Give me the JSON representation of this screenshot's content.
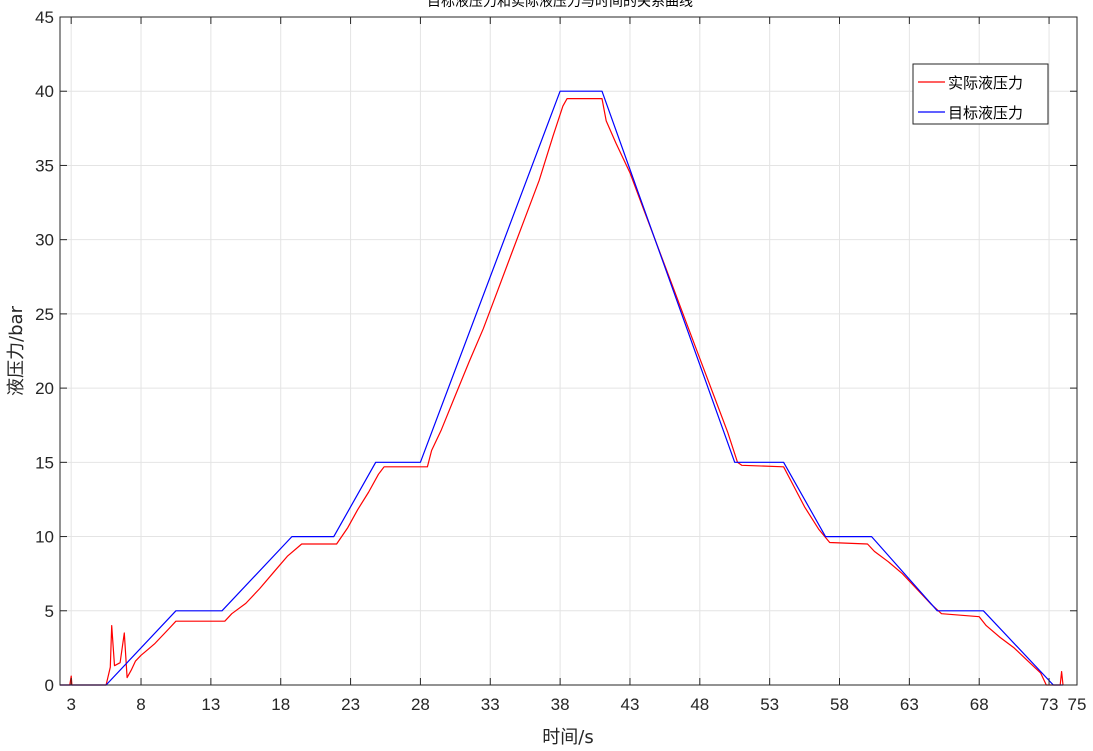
{
  "chart_data": {
    "type": "line",
    "title": "目标液压力和实际液压力与时间的关系曲线",
    "xlabel": "时间/s",
    "ylabel": "液压力/bar",
    "xlim": [
      2.2,
      75
    ],
    "ylim": [
      0,
      45
    ],
    "grid": true,
    "legend_position": "top-right",
    "xticks": [
      3,
      8,
      13,
      18,
      23,
      28,
      33,
      38,
      43,
      48,
      53,
      58,
      63,
      68,
      73,
      75
    ],
    "yticks": [
      0,
      5,
      10,
      15,
      20,
      25,
      30,
      35,
      40,
      45
    ],
    "series": [
      {
        "name": "实际液压力",
        "color": "#ff0000",
        "points": [
          [
            2.2,
            0
          ],
          [
            2.9,
            0
          ],
          [
            3.0,
            0.6
          ],
          [
            3.05,
            0
          ],
          [
            5.5,
            0
          ],
          [
            5.8,
            1.2
          ],
          [
            5.9,
            4.0
          ],
          [
            6.1,
            1.3
          ],
          [
            6.5,
            1.5
          ],
          [
            6.8,
            3.5
          ],
          [
            7.0,
            0.5
          ],
          [
            7.3,
            1.0
          ],
          [
            7.6,
            1.6
          ],
          [
            8.0,
            2.0
          ],
          [
            8.5,
            2.4
          ],
          [
            9.0,
            2.8
          ],
          [
            9.5,
            3.3
          ],
          [
            10.0,
            3.8
          ],
          [
            10.5,
            4.3
          ],
          [
            14.0,
            4.3
          ],
          [
            14.5,
            4.8
          ],
          [
            15.5,
            5.5
          ],
          [
            16.5,
            6.5
          ],
          [
            17.5,
            7.6
          ],
          [
            18.5,
            8.7
          ],
          [
            19.5,
            9.5
          ],
          [
            22.0,
            9.5
          ],
          [
            22.8,
            10.6
          ],
          [
            23.5,
            11.8
          ],
          [
            24.3,
            13.0
          ],
          [
            25.0,
            14.2
          ],
          [
            25.4,
            14.7
          ],
          [
            28.5,
            14.7
          ],
          [
            28.8,
            15.8
          ],
          [
            29.5,
            17.2
          ],
          [
            30.5,
            19.5
          ],
          [
            31.5,
            21.8
          ],
          [
            32.5,
            24.0
          ],
          [
            33.5,
            26.5
          ],
          [
            34.5,
            29.0
          ],
          [
            35.5,
            31.5
          ],
          [
            36.5,
            34.0
          ],
          [
            37.5,
            37.0
          ],
          [
            38.2,
            39.0
          ],
          [
            38.5,
            39.5
          ],
          [
            41.0,
            39.5
          ],
          [
            41.3,
            38.0
          ],
          [
            42.0,
            36.5
          ],
          [
            43.0,
            34.5
          ],
          [
            44.0,
            32.0
          ],
          [
            45.0,
            29.5
          ],
          [
            46.0,
            27.0
          ],
          [
            47.0,
            24.5
          ],
          [
            48.0,
            22.0
          ],
          [
            49.0,
            19.5
          ],
          [
            50.0,
            17.0
          ],
          [
            50.7,
            15.0
          ],
          [
            51.0,
            14.8
          ],
          [
            54.0,
            14.7
          ],
          [
            54.5,
            13.8
          ],
          [
            55.5,
            12.0
          ],
          [
            56.5,
            10.5
          ],
          [
            57.3,
            9.6
          ],
          [
            60.0,
            9.5
          ],
          [
            60.5,
            9.0
          ],
          [
            61.5,
            8.3
          ],
          [
            62.5,
            7.5
          ],
          [
            63.5,
            6.5
          ],
          [
            64.5,
            5.5
          ],
          [
            65.3,
            4.8
          ],
          [
            68.0,
            4.6
          ],
          [
            68.5,
            4.0
          ],
          [
            69.5,
            3.2
          ],
          [
            70.5,
            2.5
          ],
          [
            71.5,
            1.6
          ],
          [
            72.4,
            0.8
          ],
          [
            72.8,
            0.0
          ],
          [
            73.8,
            0.0
          ],
          [
            73.9,
            0.9
          ],
          [
            74.0,
            0
          ]
        ]
      },
      {
        "name": "目标液压力",
        "color": "#0000ff",
        "points": [
          [
            2.2,
            0
          ],
          [
            5.5,
            0
          ],
          [
            10.5,
            5
          ],
          [
            13.8,
            5
          ],
          [
            18.8,
            10
          ],
          [
            21.8,
            10
          ],
          [
            24.8,
            15
          ],
          [
            28.0,
            15
          ],
          [
            38.0,
            40
          ],
          [
            41.0,
            40
          ],
          [
            50.5,
            15
          ],
          [
            54.0,
            15
          ],
          [
            57.0,
            10
          ],
          [
            60.3,
            10
          ],
          [
            65.0,
            5
          ],
          [
            68.3,
            5
          ],
          [
            73.3,
            0
          ],
          [
            74.0,
            0
          ]
        ]
      }
    ]
  }
}
